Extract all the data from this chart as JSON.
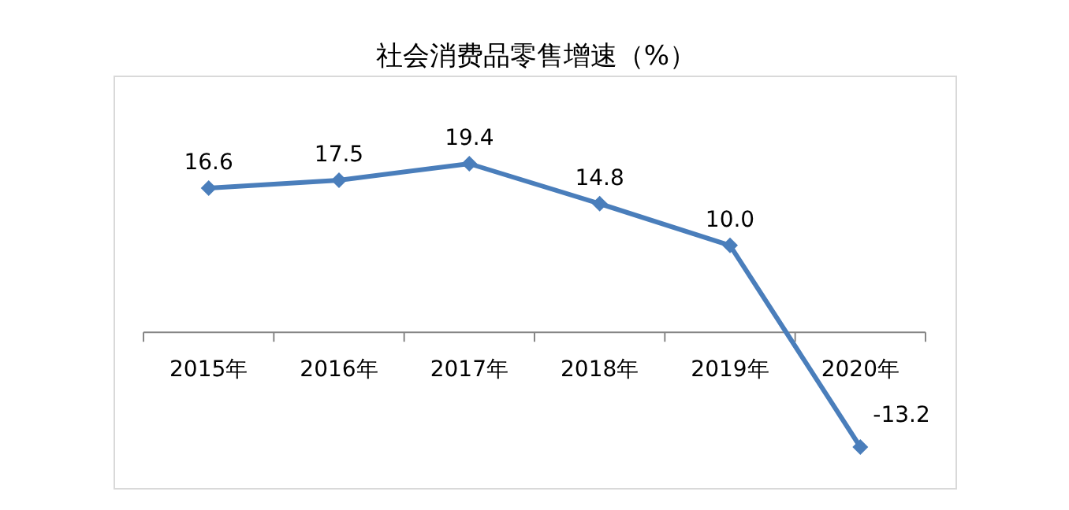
{
  "chart_data": {
    "type": "line",
    "title": "社会消费品零售增速（%）",
    "categories": [
      "2015年",
      "2016年",
      "2017年",
      "2018年",
      "2019年",
      "2020年"
    ],
    "values": [
      16.6,
      17.5,
      19.4,
      14.8,
      10.0,
      -13.2
    ],
    "value_labels": [
      "16.6",
      "17.5",
      "19.4",
      "14.8",
      "10.0",
      "-13.2"
    ],
    "color": "#4a7ebb",
    "marker": "diamond"
  }
}
